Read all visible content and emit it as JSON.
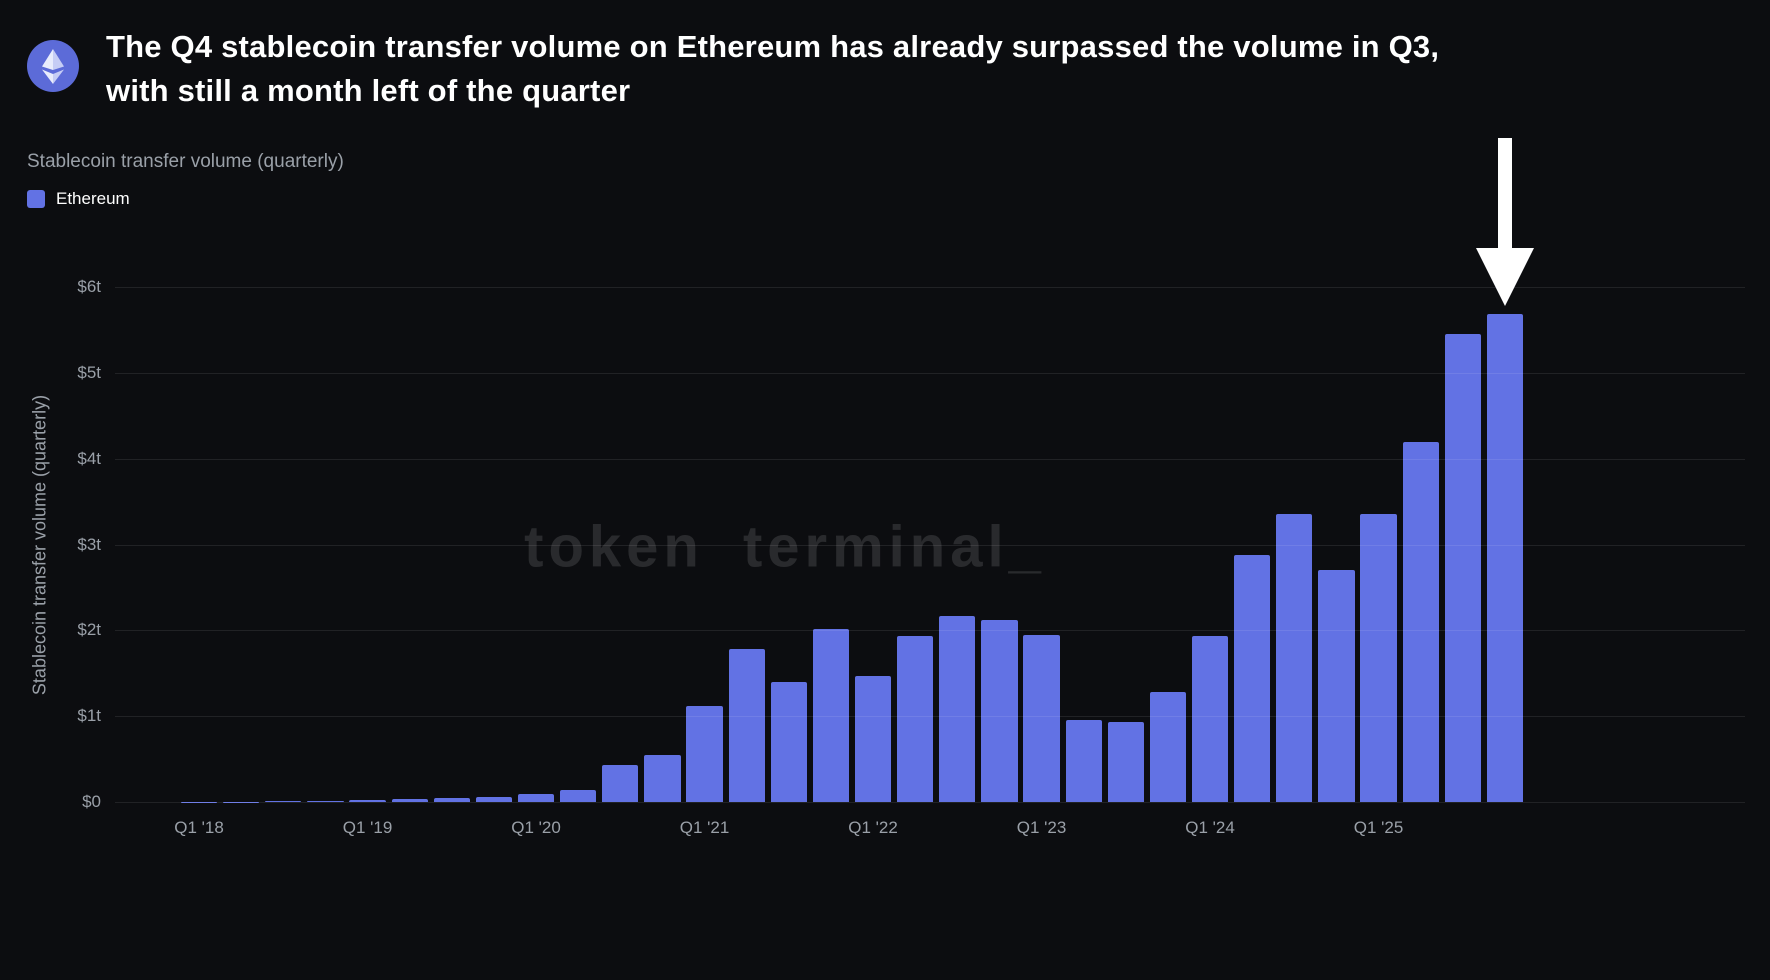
{
  "header": {
    "title": "The Q4 stablecoin transfer volume on Ethereum has already surpassed the volume in Q3, with still a month left of the quarter"
  },
  "chart": {
    "subtitle": "Stablecoin transfer volume (quarterly)",
    "legend": {
      "label": "Ethereum",
      "color": "#6272e4"
    },
    "watermark": "token terminal_"
  },
  "chart_data": {
    "type": "bar",
    "title": "Stablecoin transfer volume (quarterly)",
    "ylabel": "Stablecoin transfer volume (quarterly)",
    "xlabel": "",
    "ylim": [
      0,
      6
    ],
    "grid": true,
    "legend_position": "top-left",
    "bar_color": "#6272e4",
    "y_tick_labels": [
      "$0",
      "$1t",
      "$2t",
      "$3t",
      "$4t",
      "$5t",
      "$6t"
    ],
    "x_tick_labels": [
      "Q1 '18",
      "Q1 '19",
      "Q1 '20",
      "Q1 '21",
      "Q1 '22",
      "Q1 '23",
      "Q1 '24",
      "Q1 '25"
    ],
    "categories": [
      "Q1 '18",
      "Q2 '18",
      "Q3 '18",
      "Q4 '18",
      "Q1 '19",
      "Q2 '19",
      "Q3 '19",
      "Q4 '19",
      "Q1 '20",
      "Q2 '20",
      "Q3 '20",
      "Q4 '20",
      "Q1 '21",
      "Q2 '21",
      "Q3 '21",
      "Q4 '21",
      "Q1 '22",
      "Q2 '22",
      "Q3 '22",
      "Q4 '22",
      "Q1 '23",
      "Q2 '23",
      "Q3 '23",
      "Q4 '23",
      "Q1 '24",
      "Q2 '24",
      "Q3 '24",
      "Q4 '24",
      "Q1 '25",
      "Q2 '25",
      "Q3 '25",
      "Q4 '25"
    ],
    "series": [
      {
        "name": "Ethereum",
        "values": [
          0.005,
          0.005,
          0.01,
          0.01,
          0.02,
          0.03,
          0.05,
          0.06,
          0.09,
          0.14,
          0.43,
          0.55,
          1.12,
          1.78,
          1.4,
          2.01,
          1.47,
          1.93,
          2.17,
          2.12,
          1.95,
          0.95,
          0.93,
          1.28,
          1.93,
          2.88,
          3.35,
          2.7,
          3.35,
          4.2,
          5.45,
          5.68
        ]
      }
    ],
    "annotations": [
      {
        "type": "down-arrow",
        "target_category": "Q4 '25"
      }
    ]
  }
}
